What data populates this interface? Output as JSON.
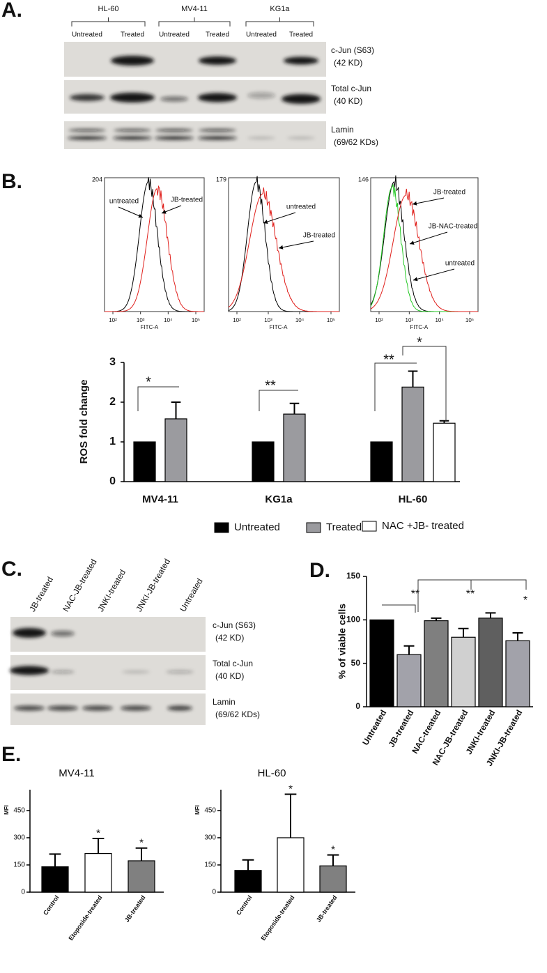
{
  "panels": [
    "A.",
    "B.",
    "C.",
    "D.",
    "E."
  ],
  "blot_a": {
    "groups": [
      "HL-60",
      "MV4-11",
      "KG1a"
    ],
    "lanes": [
      "Untreated",
      "Treated",
      "Untreated",
      "Treated",
      "Untreated",
      "Treated"
    ],
    "rows": [
      {
        "label": "c-Jun (S63)",
        "sublabel": "(42 KD)"
      },
      {
        "label": "Total c-Jun",
        "sublabel": "(40 KD)"
      },
      {
        "label": "Lamin",
        "sublabel": "(69/62 KDs)"
      }
    ]
  },
  "histograms": [
    {
      "ymax": 204,
      "xticks": [
        "10²",
        "10³",
        "10⁴",
        "10⁵"
      ],
      "xlabel": "FITC-A",
      "annotations": [
        "untreated",
        "JB-treated"
      ]
    },
    {
      "ymax": 179,
      "xticks": [
        "10²",
        "10³",
        "10⁴",
        "10⁵"
      ],
      "xlabel": "FITC-A",
      "annotations": [
        "untreated",
        "JB-treated"
      ]
    },
    {
      "ymax": 146,
      "xticks": [
        "10²",
        "10³",
        "10⁴",
        "10⁵"
      ],
      "xlabel": "FITC-A",
      "annotations": [
        "JB-treated",
        "JB-NAC-treated",
        "untreated"
      ]
    }
  ],
  "blot_c": {
    "lanes": [
      "JB-treated",
      "NAC-JB-treated",
      "JNKI-treated",
      "JNKI-JB-treated",
      "Untreated"
    ],
    "rows": [
      {
        "label": "c-Jun (S63)",
        "sublabel": "(42 KD)"
      },
      {
        "label": "Total c-Jun",
        "sublabel": "(40 KD)"
      },
      {
        "label": "Lamin",
        "sublabel": "(69/62 KDs)"
      }
    ]
  },
  "chart_data": [
    {
      "type": "bar",
      "ylabel": "ROS fold change",
      "categories": [
        "MV4-11",
        "KG1a",
        "HL-60"
      ],
      "series": [
        {
          "name": "Untreated",
          "color": "#000000",
          "values": [
            1,
            1,
            1
          ]
        },
        {
          "name": "Treated",
          "color": "#9b9b9f",
          "values": [
            1.58,
            1.7,
            2.38
          ],
          "errors": [
            0.42,
            0.27,
            0.4
          ]
        },
        {
          "name": "NAC +JB- treated",
          "color": "#ffffff",
          "values": [
            null,
            null,
            1.47
          ],
          "errors": [
            null,
            null,
            0.06
          ]
        }
      ],
      "ylim": [
        0,
        3
      ],
      "yticks": [
        0,
        1,
        2,
        3
      ],
      "annotations": [
        "*",
        "**",
        "**",
        "*"
      ]
    },
    {
      "type": "bar",
      "ylabel": "% of viable cells",
      "categories": [
        "Untreated",
        "JB-treated",
        "NAC-treated",
        "NAC-JB-treated",
        "JNKI-treated",
        "JNKI-JB-treated"
      ],
      "values": [
        100,
        60,
        99,
        80,
        102,
        76
      ],
      "errors": [
        null,
        10,
        3,
        10,
        6,
        9
      ],
      "colors": [
        "#000000",
        "#a2a2aa",
        "#7f7f7f",
        "#d0d0d0",
        "#5f5f5f",
        "#a2a2aa"
      ],
      "ylim": [
        0,
        150
      ],
      "yticks": [
        0,
        50,
        100,
        150
      ],
      "annotations": [
        "**",
        "**",
        "*"
      ]
    },
    {
      "type": "bar",
      "title": "MV4-11",
      "ylabel": "MFI",
      "categories": [
        "Control",
        "Etoposide-treated",
        "JB-treated"
      ],
      "values": [
        140,
        213,
        173
      ],
      "errors": [
        70,
        83,
        70
      ],
      "colors": [
        "#000000",
        "#ffffff",
        "#808080"
      ],
      "ylim": [
        0,
        565
      ],
      "yticks": [
        0,
        150,
        300,
        450
      ],
      "annotations": [
        "*",
        "*"
      ]
    },
    {
      "type": "bar",
      "title": "HL-60",
      "ylabel": "MFI",
      "categories": [
        "Control",
        "Etoposide-treated",
        "JB-treated"
      ],
      "values": [
        120,
        300,
        145
      ],
      "errors": [
        58,
        240,
        60
      ],
      "colors": [
        "#000000",
        "#ffffff",
        "#808080"
      ],
      "ylim": [
        0,
        565
      ],
      "yticks": [
        0,
        150,
        300,
        450
      ],
      "annotations": [
        "*",
        "*"
      ]
    }
  ]
}
